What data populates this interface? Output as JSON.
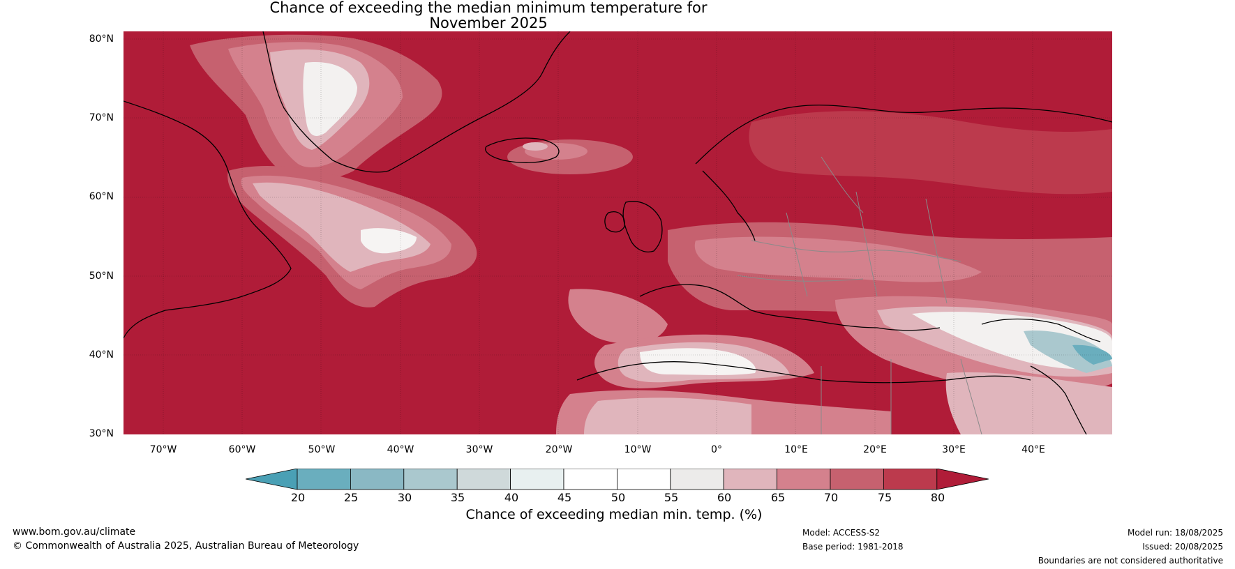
{
  "title": {
    "line1": "Chance of exceeding the median minimum temperature for",
    "line2": "November 2025"
  },
  "map": {
    "lat_labels": [
      "80°N",
      "70°N",
      "60°N",
      "50°N",
      "40°N",
      "30°N"
    ],
    "lon_labels": [
      "70°W",
      "60°W",
      "50°W",
      "40°W",
      "30°W",
      "20°W",
      "10°W",
      "0°",
      "10°E",
      "20°E",
      "30°E",
      "40°E"
    ],
    "lat_range": [
      30,
      81
    ],
    "lon_range": [
      -75,
      50
    ]
  },
  "colorbar": {
    "title": "Chance of exceeding median min. temp. (%)",
    "ticks": [
      "20",
      "25",
      "30",
      "35",
      "40",
      "45",
      "50",
      "55",
      "60",
      "65",
      "70",
      "75",
      "80"
    ],
    "colors": [
      "#4aa0b5",
      "#6aaebe",
      "#8ab8c4",
      "#aac8ce",
      "#cfd9da",
      "#e8f0f0",
      "#ffffff",
      "#ffffff",
      "#ecebea",
      "#e0b5bc",
      "#d4818d",
      "#c6616f",
      "#bc3a4d",
      "#b01c38"
    ],
    "under_color": "#4aa0b5",
    "over_color": "#b01c38"
  },
  "footer": {
    "url": "www.bom.gov.au/climate",
    "copyright": "© Commonwealth of Australia 2025, Australian Bureau of Meteorology",
    "model": "Model: ACCESS-S2",
    "base_period": "Base period: 1981-2018",
    "model_run": "Model run: 18/08/2025",
    "issued": "Issued: 20/08/2025",
    "disclaimer": "Boundaries are not considered authoritative"
  }
}
